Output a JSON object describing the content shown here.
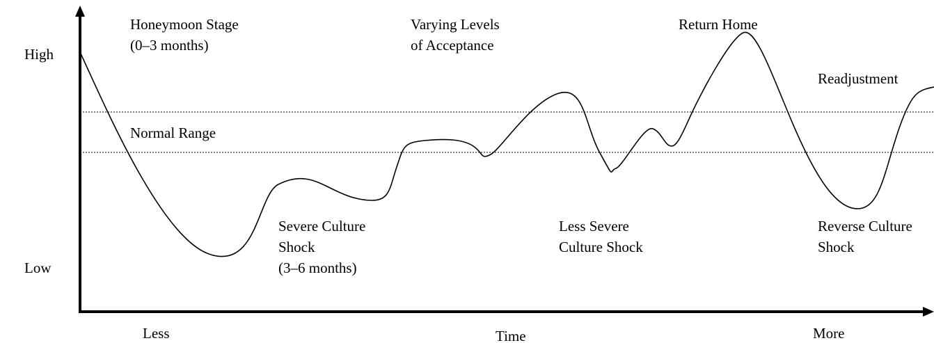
{
  "axes": {
    "y_high": "High",
    "y_low": "Low",
    "x_less": "Less",
    "x_title": "Time",
    "x_more": "More"
  },
  "normal_range": "Normal Range",
  "stages": [
    {
      "lines": [
        "Honeymoon Stage",
        "(0–3 months)"
      ]
    },
    {
      "lines": [
        "Varying Levels",
        "of Acceptance"
      ]
    },
    {
      "lines": [
        "Return Home"
      ]
    },
    {
      "lines": [
        "Readjustment"
      ]
    },
    {
      "lines": [
        "Severe Culture",
        "Shock",
        "(3–6 months)"
      ]
    },
    {
      "lines": [
        "Less Severe",
        "Culture Shock"
      ]
    },
    {
      "lines": [
        "Reverse Culture",
        "Shock"
      ]
    }
  ]
}
